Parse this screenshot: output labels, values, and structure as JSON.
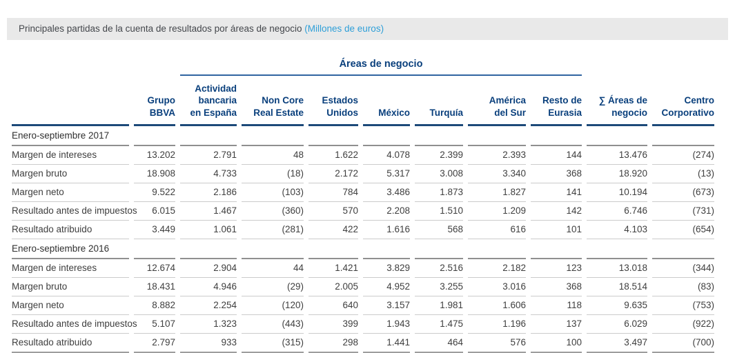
{
  "title_bar": {
    "text": "Principales partidas de la cuenta de resultados por áreas de negocio ",
    "unit_note": "(Millones de euros)"
  },
  "colors": {
    "header_blue": "#093f7c",
    "unit_note_blue": "#2e9fd8",
    "title_bar_gray": "#e9e9e9",
    "thick_rule_navy": "#1c4979",
    "group_rule_blue": "#2f64a0"
  },
  "table": {
    "group_header": "Áreas de negocio",
    "columns": [
      {
        "label": "",
        "name": "row-labels"
      },
      {
        "label": "Grupo\nBBVA",
        "name": "grupo-bbva"
      },
      {
        "label": "Actividad\nbancaria\nen España",
        "name": "actividad-bancaria-espana"
      },
      {
        "label": "Non Core\nReal Estate",
        "name": "non-core-real-estate"
      },
      {
        "label": "Estados\nUnidos",
        "name": "estados-unidos"
      },
      {
        "label": "México",
        "name": "mexico"
      },
      {
        "label": "Turquía",
        "name": "turquia"
      },
      {
        "label": "América\ndel Sur",
        "name": "america-del-sur"
      },
      {
        "label": "Resto de\nEurasia",
        "name": "resto-de-eurasia"
      },
      {
        "label": "∑ Áreas de\nnegocio",
        "name": "suma-areas-de-negocio"
      },
      {
        "label": "Centro\nCorporativo",
        "name": "centro-corporativo"
      }
    ],
    "sections": [
      {
        "label": "Enero-septiembre 2017",
        "rows": [
          {
            "label": "Margen de intereses",
            "values": [
              "13.202",
              "2.791",
              "48",
              "1.622",
              "4.078",
              "2.399",
              "2.393",
              "144",
              "13.476",
              "(274)"
            ]
          },
          {
            "label": "Margen bruto",
            "values": [
              "18.908",
              "4.733",
              "(18)",
              "2.172",
              "5.317",
              "3.008",
              "3.340",
              "368",
              "18.920",
              "(13)"
            ]
          },
          {
            "label": "Margen neto",
            "values": [
              "9.522",
              "2.186",
              "(103)",
              "784",
              "3.486",
              "1.873",
              "1.827",
              "141",
              "10.194",
              "(673)"
            ]
          },
          {
            "label": "Resultado antes de impuestos",
            "values": [
              "6.015",
              "1.467",
              "(360)",
              "570",
              "2.208",
              "1.510",
              "1.209",
              "142",
              "6.746",
              "(731)"
            ]
          },
          {
            "label": "Resultado atribuido",
            "values": [
              "3.449",
              "1.061",
              "(281)",
              "422",
              "1.616",
              "568",
              "616",
              "101",
              "4.103",
              "(654)"
            ]
          }
        ]
      },
      {
        "label": "Enero-septiembre 2016",
        "rows": [
          {
            "label": "Margen de intereses",
            "values": [
              "12.674",
              "2.904",
              "44",
              "1.421",
              "3.829",
              "2.516",
              "2.182",
              "123",
              "13.018",
              "(344)"
            ]
          },
          {
            "label": "Margen bruto",
            "values": [
              "18.431",
              "4.946",
              "(29)",
              "2.005",
              "4.952",
              "3.255",
              "3.016",
              "368",
              "18.514",
              "(83)"
            ]
          },
          {
            "label": "Margen neto",
            "values": [
              "8.882",
              "2.254",
              "(120)",
              "640",
              "3.157",
              "1.981",
              "1.606",
              "118",
              "9.635",
              "(753)"
            ]
          },
          {
            "label": "Resultado antes de impuestos",
            "values": [
              "5.107",
              "1.323",
              "(443)",
              "399",
              "1.943",
              "1.475",
              "1.196",
              "137",
              "6.029",
              "(922)"
            ]
          },
          {
            "label": "Resultado atribuido",
            "values": [
              "2.797",
              "933",
              "(315)",
              "298",
              "1.441",
              "464",
              "576",
              "100",
              "3.497",
              "(700)"
            ]
          }
        ]
      }
    ]
  }
}
